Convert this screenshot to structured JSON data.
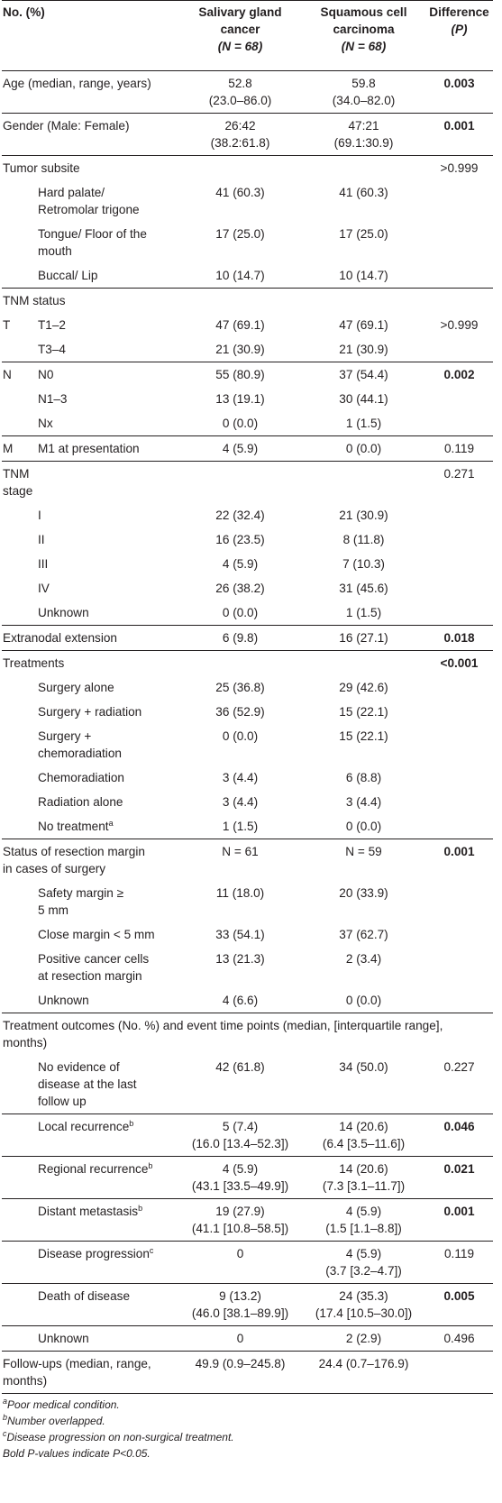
{
  "header": {
    "col1": "No. (%)",
    "col2a": "Salivary gland",
    "col2b": "cancer",
    "col2n": "(N = 68)",
    "col3a": "Squamous cell",
    "col3b": "carcinoma",
    "col3n": "(N = 68)",
    "col4a": "Difference",
    "col4b": "(P)"
  },
  "rows": {
    "age": {
      "label": "Age (median, range, years)",
      "sgc": "52.8",
      "sgc2": "(23.0–86.0)",
      "scc": "59.8",
      "scc2": "(34.0–82.0)",
      "p": "0.003"
    },
    "gender": {
      "label": "Gender (Male: Female)",
      "sgc": "26:42",
      "sgc2": "(38.2:61.8)",
      "scc": "47:21",
      "scc2": "(69.1:30.9)",
      "p": "0.001"
    },
    "subsite": {
      "label": "Tumor subsite",
      "p": ">0.999"
    },
    "hard": {
      "label1": "Hard palate/",
      "label2": "Retromolar trigone",
      "sgc": "41 (60.3)",
      "scc": "41 (60.3)"
    },
    "tongue": {
      "label1": "Tongue/ Floor of the",
      "label2": "mouth",
      "sgc": "17 (25.0)",
      "scc": "17 (25.0)"
    },
    "buccal": {
      "label": "Buccal/ Lip",
      "sgc": "10 (14.7)",
      "scc": "10 (14.7)"
    },
    "tnm_status": {
      "label": "TNM status"
    },
    "t12": {
      "group": "T",
      "label": "T1–2",
      "sgc": "47 (69.1)",
      "scc": "47 (69.1)",
      "p": ">0.999"
    },
    "t34": {
      "label": "T3–4",
      "sgc": "21 (30.9)",
      "scc": "21 (30.9)"
    },
    "n0": {
      "group": "N",
      "label": "N0",
      "sgc": "55 (80.9)",
      "scc": "37 (54.4)",
      "p": "0.002"
    },
    "n13": {
      "label": "N1–3",
      "sgc": "13 (19.1)",
      "scc": "30 (44.1)"
    },
    "nx": {
      "label": "Nx",
      "sgc": "0 (0.0)",
      "scc": "1 (1.5)"
    },
    "m1": {
      "group": "M",
      "label": "M1 at presentation",
      "sgc": "4 (5.9)",
      "scc": "0 (0.0)",
      "p": "0.119"
    },
    "tnm_stage": {
      "label1": "TNM",
      "label2": "stage",
      "p": "0.271"
    },
    "s1": {
      "label": "I",
      "sgc": "22 (32.4)",
      "scc": "21 (30.9)"
    },
    "s2": {
      "label": "II",
      "sgc": "16 (23.5)",
      "scc": "8 (11.8)"
    },
    "s3": {
      "label": "III",
      "sgc": "4 (5.9)",
      "scc": "7 (10.3)"
    },
    "s4": {
      "label": "IV",
      "sgc": "26 (38.2)",
      "scc": "31 (45.6)"
    },
    "sunk": {
      "label": "Unknown",
      "sgc": "0 (0.0)",
      "scc": "1 (1.5)"
    },
    "extranodal": {
      "label": "Extranodal extension",
      "sgc": "6 (9.8)",
      "scc": "16 (27.1)",
      "p": "0.018"
    },
    "treatments": {
      "label": "Treatments",
      "p": "<0.001"
    },
    "surg_alone": {
      "label": "Surgery alone",
      "sgc": "25 (36.8)",
      "scc": "29 (42.6)"
    },
    "surg_rad": {
      "label": "Surgery + radiation",
      "sgc": "36 (52.9)",
      "scc": "15 (22.1)"
    },
    "surg_chemo": {
      "label1": "Surgery +",
      "label2": "chemoradiation",
      "sgc": "0 (0.0)",
      "scc": "15 (22.1)"
    },
    "chemo": {
      "label": "Chemoradiation",
      "sgc": "3 (4.4)",
      "scc": "6 (8.8)"
    },
    "rad_alone": {
      "label": "Radiation alone",
      "sgc": "3 (4.4)",
      "scc": "3 (4.4)"
    },
    "no_treat": {
      "label": "No treatment",
      "sup": "a",
      "sgc": "1 (1.5)",
      "scc": "0 (0.0)"
    },
    "margin": {
      "label1": "Status of resection margin",
      "label2": "in cases of surgery",
      "sgc": "N = 61",
      "scc": "N = 59",
      "p": "0.001"
    },
    "safety": {
      "label1": "Safety margin ≥",
      "label2": "5 mm",
      "sgc": "11 (18.0)",
      "scc": "20 (33.9)"
    },
    "close": {
      "label": "Close margin < 5 mm",
      "sgc": "33 (54.1)",
      "scc": "37 (62.7)"
    },
    "positive": {
      "label1": "Positive cancer cells",
      "label2": "at resection margin",
      "sgc": "13 (21.3)",
      "scc": "2 (3.4)"
    },
    "munk": {
      "label": "Unknown",
      "sgc": "4 (6.6)",
      "scc": "0 (0.0)"
    },
    "outcomes": {
      "label1": "Treatment outcomes (No. %) and event time points (median, [interquartile range],",
      "label2": "months)"
    },
    "ned": {
      "label1": "No evidence of",
      "label2": "disease at the last",
      "label3": "follow up",
      "sgc": "42 (61.8)",
      "scc": "34 (50.0)",
      "p": "0.227"
    },
    "local": {
      "label": "Local recurrence",
      "sup": "b",
      "sgc": "5 (7.4)",
      "sgc2": "(16.0 [13.4–52.3])",
      "scc": "14 (20.6)",
      "scc2": "(6.4 [3.5–11.6])",
      "p": "0.046"
    },
    "regional": {
      "label": "Regional recurrence",
      "sup": "b",
      "sgc": "4 (5.9)",
      "sgc2": "(43.1 [33.5–49.9])",
      "scc": "14 (20.6)",
      "scc2": "(7.3 [3.1–11.7])",
      "p": "0.021"
    },
    "distant": {
      "label": "Distant metastasis",
      "sup": "b",
      "sgc": "19 (27.9)",
      "sgc2": "(41.1 [10.8–58.5])",
      "scc": "4 (5.9)",
      "scc2": "(1.5 [1.1–8.8])",
      "p": "0.001"
    },
    "progression": {
      "label": "Disease progression",
      "sup": "c",
      "sgc": "0",
      "scc": "4 (5.9)",
      "scc2": "(3.7 [3.2–4.7])",
      "p": "0.119"
    },
    "death": {
      "label": "Death of disease",
      "sgc": "9 (13.2)",
      "sgc2": "(46.0 [38.1–89.9])",
      "scc": "24 (35.3)",
      "scc2": "(17.4 [10.5–30.0])",
      "p": "0.005"
    },
    "ounk": {
      "label": "Unknown",
      "sgc": "0",
      "scc": "2 (2.9)",
      "p": "0.496"
    },
    "followups": {
      "label1": "Follow-ups (median, range,",
      "label2": "months)",
      "sgc": "49.9 (0.9–245.8)",
      "scc": "24.4 (0.7–176.9)"
    }
  },
  "footnotes": {
    "a_mark": "a",
    "a": "Poor medical condition.",
    "b_mark": "b",
    "b": "Number overlapped.",
    "c_mark": "c",
    "c": "Disease progression on non-surgical treatment.",
    "bold": "Bold P-values indicate P<0.05."
  }
}
